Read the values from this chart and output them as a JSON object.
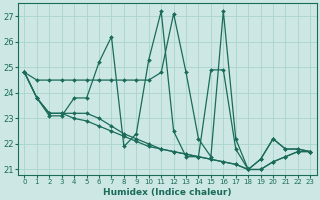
{
  "xlabel": "Humidex (Indice chaleur)",
  "bg_color": "#cde8e4",
  "grid_color": "#aad4cc",
  "line_color": "#1a6b5a",
  "xlim": [
    -0.5,
    23.5
  ],
  "ylim": [
    20.8,
    27.5
  ],
  "yticks": [
    21,
    22,
    23,
    24,
    25,
    26,
    27
  ],
  "xticks": [
    0,
    1,
    2,
    3,
    4,
    5,
    6,
    7,
    8,
    9,
    10,
    11,
    12,
    13,
    14,
    15,
    16,
    17,
    18,
    19,
    20,
    21,
    22,
    23
  ],
  "lines": [
    [
      24.8,
      24.5,
      24.5,
      24.5,
      24.5,
      24.5,
      24.5,
      24.5,
      24.5,
      24.5,
      24.5,
      24.8,
      27.1,
      24.8,
      22.2,
      21.5,
      27.2,
      22.2,
      21.0,
      21.4,
      22.2,
      21.8,
      21.8,
      21.7
    ],
    [
      24.8,
      23.8,
      23.1,
      23.1,
      23.8,
      23.8,
      25.2,
      26.2,
      21.9,
      22.4,
      25.3,
      27.2,
      22.5,
      21.5,
      21.5,
      24.9,
      24.9,
      21.8,
      21.0,
      21.4,
      22.2,
      21.8,
      21.8,
      21.7
    ],
    [
      24.8,
      23.8,
      23.2,
      23.2,
      23.2,
      23.2,
      23.0,
      22.7,
      22.4,
      22.2,
      22.0,
      21.8,
      21.7,
      21.6,
      21.5,
      21.4,
      21.3,
      21.2,
      21.0,
      21.0,
      21.3,
      21.5,
      21.7,
      21.7
    ],
    [
      24.8,
      23.8,
      23.2,
      23.2,
      23.0,
      22.9,
      22.7,
      22.5,
      22.3,
      22.1,
      21.9,
      21.8,
      21.7,
      21.6,
      21.5,
      21.4,
      21.3,
      21.2,
      21.0,
      21.0,
      21.3,
      21.5,
      21.7,
      21.7
    ]
  ]
}
